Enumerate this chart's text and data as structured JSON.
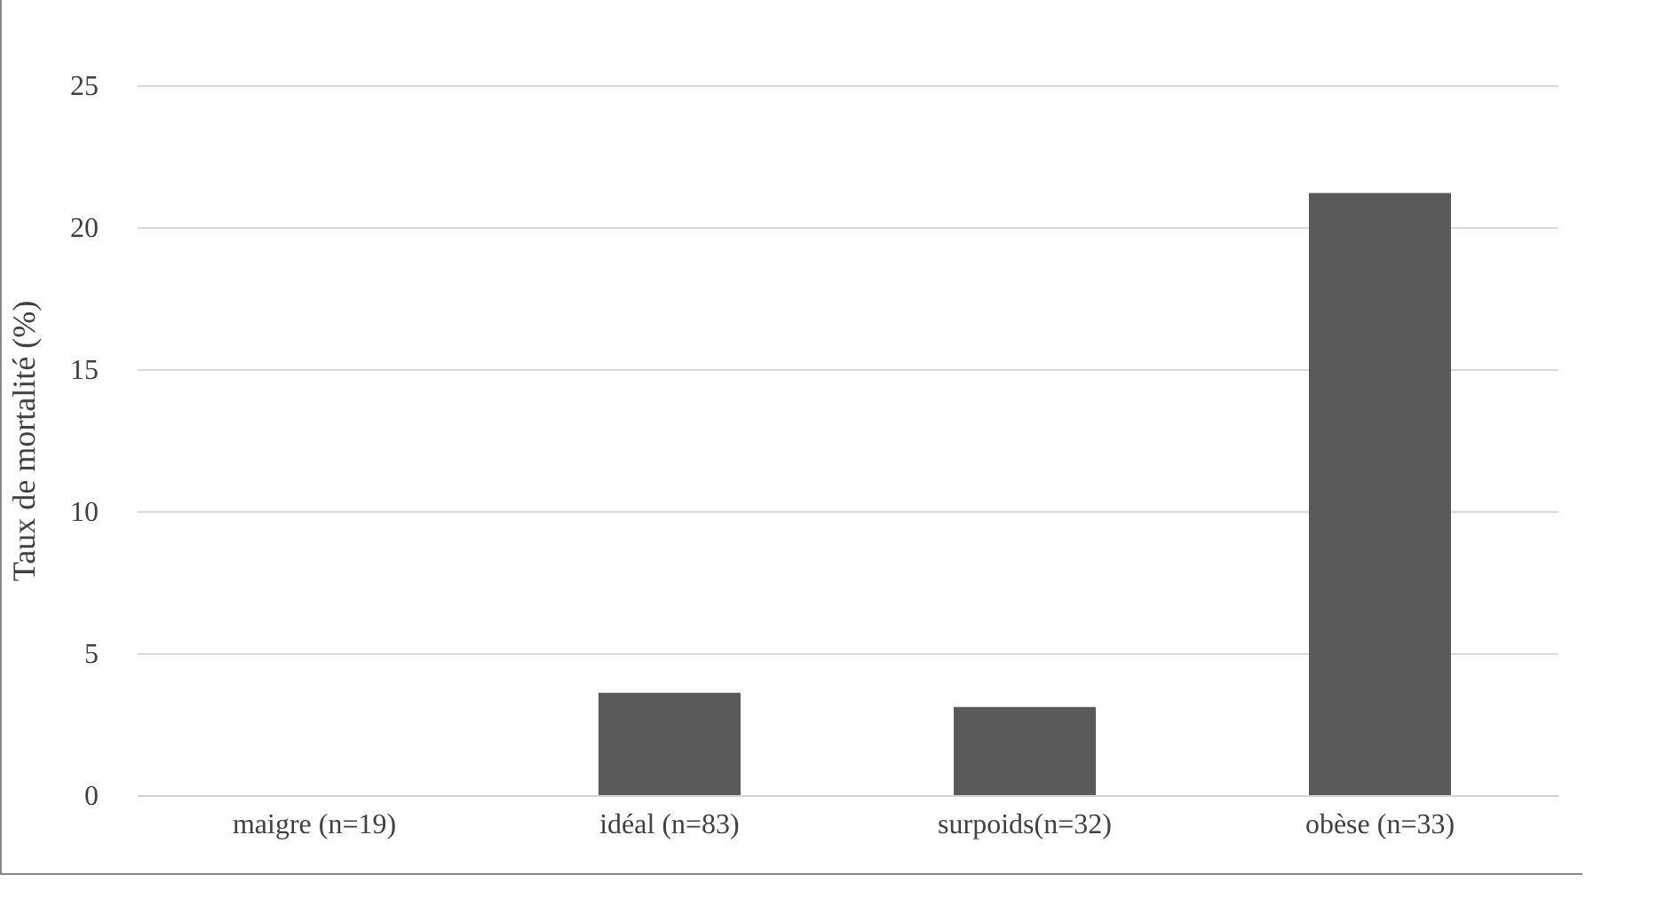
{
  "chart_data": {
    "type": "bar",
    "ylabel": "Taux de mortalité (%)",
    "categories": [
      "maigre (n=19)",
      "idéal (n=83)",
      "surpoids(n=32)",
      "obèse (n=33)"
    ],
    "values": [
      0,
      3.6,
      3.1,
      21.2
    ],
    "color": "#595959",
    "ylim": [
      0,
      25
    ],
    "yticks": [
      0,
      5,
      10,
      15,
      20,
      25
    ],
    "grid": "y"
  }
}
